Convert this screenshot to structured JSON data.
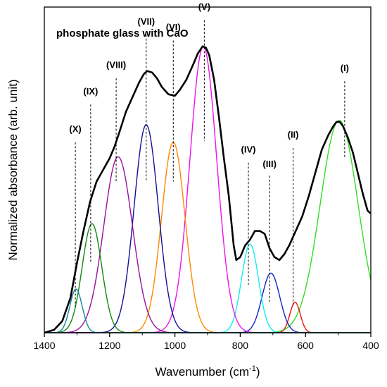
{
  "chart_data": {
    "type": "line",
    "title": "phosphate glass with CaO",
    "xlabel_main": "Wavenumber (cm",
    "xlabel_sup": "-1",
    "xlabel_tail": ")",
    "ylabel": "Normalized absorbance (arb. unit)",
    "xlim": [
      1400,
      400
    ],
    "ylim": [
      0,
      1.12
    ],
    "x_reversed": true,
    "grid": false,
    "x_ticks": [
      1400,
      1200,
      1000,
      800,
      600,
      400
    ],
    "x_tick_labels": [
      "1400",
      "1200",
      "1000",
      "800",
      "600",
      "400"
    ],
    "measured_spectrum": {
      "color": "#000000",
      "points": [
        [
          1400,
          0.0
        ],
        [
          1370,
          0.01
        ],
        [
          1345,
          0.04
        ],
        [
          1320,
          0.12
        ],
        [
          1300,
          0.24
        ],
        [
          1280,
          0.35
        ],
        [
          1260,
          0.45
        ],
        [
          1240,
          0.52
        ],
        [
          1220,
          0.56
        ],
        [
          1200,
          0.6
        ],
        [
          1185,
          0.64
        ],
        [
          1170,
          0.69
        ],
        [
          1150,
          0.76
        ],
        [
          1130,
          0.81
        ],
        [
          1110,
          0.86
        ],
        [
          1095,
          0.89
        ],
        [
          1085,
          0.9
        ],
        [
          1070,
          0.895
        ],
        [
          1055,
          0.875
        ],
        [
          1040,
          0.845
        ],
        [
          1020,
          0.82
        ],
        [
          1000,
          0.815
        ],
        [
          985,
          0.835
        ],
        [
          965,
          0.87
        ],
        [
          945,
          0.92
        ],
        [
          930,
          0.96
        ],
        [
          915,
          0.985
        ],
        [
          905,
          0.98
        ],
        [
          895,
          0.955
        ],
        [
          880,
          0.87
        ],
        [
          865,
          0.74
        ],
        [
          850,
          0.6
        ],
        [
          835,
          0.47
        ],
        [
          820,
          0.3
        ],
        [
          812,
          0.25
        ],
        [
          800,
          0.26
        ],
        [
          785,
          0.3
        ],
        [
          770,
          0.32
        ],
        [
          755,
          0.35
        ],
        [
          740,
          0.35
        ],
        [
          725,
          0.34
        ],
        [
          710,
          0.29
        ],
        [
          695,
          0.26
        ],
        [
          680,
          0.25
        ],
        [
          665,
          0.27
        ],
        [
          650,
          0.3
        ],
        [
          630,
          0.35
        ],
        [
          610,
          0.4
        ],
        [
          590,
          0.47
        ],
        [
          570,
          0.55
        ],
        [
          550,
          0.63
        ],
        [
          530,
          0.68
        ],
        [
          515,
          0.71
        ],
        [
          505,
          0.725
        ],
        [
          495,
          0.725
        ],
        [
          485,
          0.71
        ],
        [
          470,
          0.67
        ],
        [
          455,
          0.62
        ],
        [
          440,
          0.55
        ],
        [
          425,
          0.48
        ],
        [
          410,
          0.42
        ],
        [
          400,
          0.41
        ]
      ]
    },
    "components": [
      {
        "name": "(I)",
        "center": 497,
        "amplitude": 0.73,
        "sigma": 58,
        "color": "#33dd22",
        "label_x": 480,
        "label_y": 0.9
      },
      {
        "name": "(II)",
        "center": 632,
        "amplitude": 0.105,
        "sigma": 16,
        "color": "#ee1111",
        "label_x": 638,
        "label_y": 0.67
      },
      {
        "name": "(III)",
        "center": 706,
        "amplitude": 0.205,
        "sigma": 27,
        "color": "#1122cc",
        "label_x": 710,
        "label_y": 0.57
      },
      {
        "name": "(IV)",
        "center": 770,
        "amplitude": 0.305,
        "sigma": 26,
        "color": "#11eeee",
        "label_x": 775,
        "label_y": 0.62
      },
      {
        "name": "(V)",
        "center": 913,
        "amplitude": 0.985,
        "sigma": 41,
        "color": "#ee11ee",
        "label_x": 910,
        "label_y": 1.11
      },
      {
        "name": "(VI)",
        "center": 1005,
        "amplitude": 0.655,
        "sigma": 36,
        "color": "#ff8800",
        "label_x": 1005,
        "label_y": 1.04
      },
      {
        "name": "(VII)",
        "center": 1088,
        "amplitude": 0.715,
        "sigma": 37,
        "color": "#111199",
        "label_x": 1088,
        "label_y": 1.06
      },
      {
        "name": "(VIII)",
        "center": 1174,
        "amplitude": 0.605,
        "sigma": 44,
        "color": "#991199",
        "label_x": 1180,
        "label_y": 0.91
      },
      {
        "name": "(IX)",
        "center": 1254,
        "amplitude": 0.375,
        "sigma": 30,
        "color": "#118811",
        "label_x": 1258,
        "label_y": 0.82
      },
      {
        "name": "(X)",
        "center": 1303,
        "amplitude": 0.15,
        "sigma": 19,
        "color": "#118899",
        "label_x": 1305,
        "label_y": 0.69
      }
    ],
    "peak_markers": [
      {
        "name": "(I)",
        "x": 480,
        "y_top": 0.865,
        "y_bottom": 0.6
      },
      {
        "name": "(II)",
        "x": 638,
        "y_top": 0.635,
        "y_bottom": 0.09
      },
      {
        "name": "(III)",
        "x": 710,
        "y_top": 0.54,
        "y_bottom": 0.1
      },
      {
        "name": "(IV)",
        "x": 775,
        "y_top": 0.585,
        "y_bottom": 0.165
      },
      {
        "name": "(V)",
        "x": 910,
        "y_top": 1.075,
        "y_bottom": 0.66
      },
      {
        "name": "(VI)",
        "x": 1005,
        "y_top": 1.005,
        "y_bottom": 0.52
      },
      {
        "name": "(VII)",
        "x": 1088,
        "y_top": 1.025,
        "y_bottom": 0.52
      },
      {
        "name": "(VIII)",
        "x": 1180,
        "y_top": 0.875,
        "y_bottom": 0.52
      },
      {
        "name": "(IX)",
        "x": 1258,
        "y_top": 0.785,
        "y_bottom": 0.24
      },
      {
        "name": "(X)",
        "x": 1305,
        "y_top": 0.655,
        "y_bottom": 0.09
      }
    ]
  }
}
